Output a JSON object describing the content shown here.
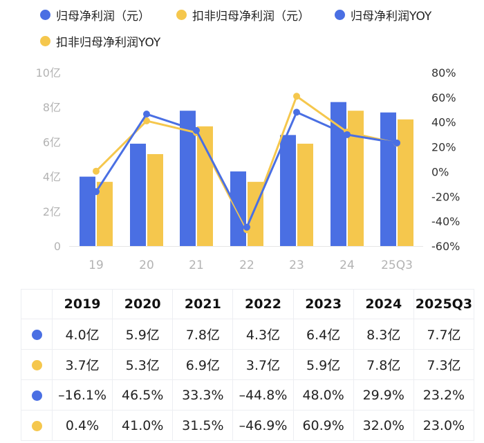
{
  "chart_data": {
    "type": "bar",
    "categories": [
      "19",
      "20",
      "21",
      "22",
      "23",
      "24",
      "25Q3"
    ],
    "series": [
      {
        "name": "归母净利润（元）",
        "kind": "bar",
        "axis": "left",
        "color": "#4a6fe3",
        "values": [
          4.0,
          5.9,
          7.8,
          4.3,
          6.4,
          8.3,
          7.7
        ]
      },
      {
        "name": "扣非归母净利润（元）",
        "kind": "bar",
        "axis": "left",
        "color": "#f5c74d",
        "values": [
          3.7,
          5.3,
          6.9,
          3.7,
          5.9,
          7.8,
          7.3
        ]
      },
      {
        "name": "归母净利润YOY",
        "kind": "line",
        "axis": "right",
        "color": "#4a6fe3",
        "values": [
          -16.1,
          46.5,
          33.3,
          -44.8,
          48.0,
          29.9,
          23.2
        ]
      },
      {
        "name": "扣非归母净利润YOY",
        "kind": "line",
        "axis": "right",
        "color": "#f5c74d",
        "values": [
          0.4,
          41.0,
          31.5,
          -46.9,
          60.9,
          32.0,
          23.0
        ]
      }
    ],
    "y_left": {
      "ticks": [
        "0",
        "2亿",
        "4亿",
        "6亿",
        "8亿",
        "10亿"
      ],
      "range": [
        0,
        10
      ],
      "unit": "亿"
    },
    "y_right": {
      "ticks": [
        "-60%",
        "-40%",
        "-20%",
        "0%",
        "20%",
        "40%",
        "60%",
        "80%"
      ],
      "range": [
        -60,
        80
      ],
      "unit": "%"
    },
    "legend_position": "top-left",
    "grid": false
  },
  "table": {
    "headers": [
      "",
      "2019",
      "2020",
      "2021",
      "2022",
      "2023",
      "2024",
      "2025Q3"
    ],
    "rows": [
      {
        "color": "#4a6fe3",
        "cells": [
          "4.0亿",
          "5.9亿",
          "7.8亿",
          "4.3亿",
          "6.4亿",
          "8.3亿",
          "7.7亿"
        ]
      },
      {
        "color": "#f5c74d",
        "cells": [
          "3.7亿",
          "5.3亿",
          "6.9亿",
          "3.7亿",
          "5.9亿",
          "7.8亿",
          "7.3亿"
        ]
      },
      {
        "color": "#4a6fe3",
        "cells": [
          "–16.1%",
          "46.5%",
          "33.3%",
          "–44.8%",
          "48.0%",
          "29.9%",
          "23.2%"
        ]
      },
      {
        "color": "#f5c74d",
        "cells": [
          "0.4%",
          "41.0%",
          "31.5%",
          "–46.9%",
          "60.9%",
          "32.0%",
          "23.0%"
        ]
      }
    ]
  }
}
